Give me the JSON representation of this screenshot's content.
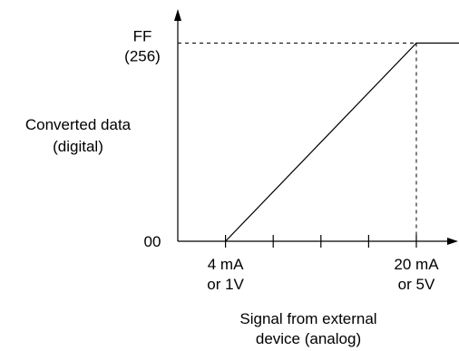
{
  "chart_data": {
    "type": "line",
    "title": "",
    "ylabel": [
      "Converted data",
      "(digital)"
    ],
    "xlabel": [
      "Signal from external",
      "device (analog)"
    ],
    "y_ticks": [
      {
        "value": 256,
        "label": [
          "FF",
          "(256)"
        ]
      },
      {
        "value": 0,
        "label": [
          "00"
        ]
      }
    ],
    "x_ticks": [
      {
        "value": 4,
        "label": [
          "4 mA",
          "or 1V"
        ]
      },
      {
        "value": 8,
        "label": []
      },
      {
        "value": 12,
        "label": []
      },
      {
        "value": 16,
        "label": []
      },
      {
        "value": 20,
        "label": [
          "20 mA",
          "or 5V"
        ]
      }
    ],
    "xlim": [
      0,
      23.5
    ],
    "ylim": [
      0,
      300
    ],
    "series": [
      {
        "x": [
          4,
          20,
          24.7
        ],
        "y": [
          0,
          256,
          256
        ]
      }
    ],
    "reference_lines": [
      {
        "orientation": "horizontal",
        "value": 256,
        "style": "dashed"
      },
      {
        "orientation": "vertical",
        "value": 20,
        "style": "dashed"
      }
    ],
    "grid": false,
    "color": "#000000"
  }
}
